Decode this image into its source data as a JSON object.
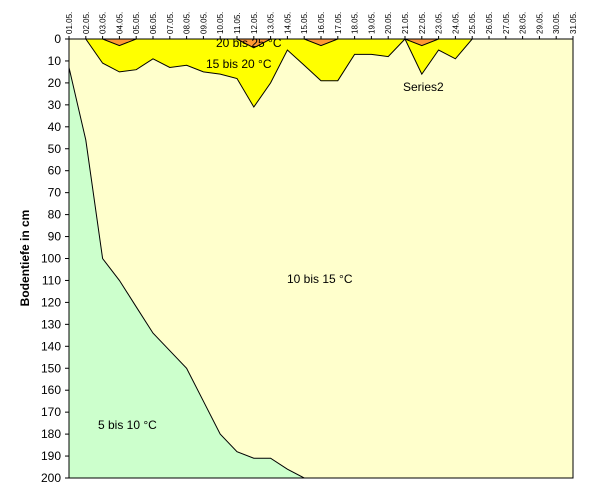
{
  "chart_data": {
    "type": "area",
    "ylabel": "Bodentiefe in cm",
    "xlabel": "",
    "y_inverted": true,
    "ylim": [
      0,
      200
    ],
    "y_ticks": [
      0,
      10,
      20,
      30,
      40,
      50,
      60,
      70,
      80,
      90,
      100,
      110,
      120,
      130,
      140,
      150,
      160,
      170,
      180,
      190,
      200
    ],
    "categories": [
      "01.05.",
      "02.05.",
      "03.05.",
      "04.05.",
      "05.05.",
      "06.05.",
      "07.05.",
      "08.05.",
      "09.05.",
      "10.05.",
      "11.05.",
      "12.05.",
      "13.05.",
      "14.05.",
      "15.05.",
      "16.05.",
      "17.05.",
      "18.05.",
      "19.05.",
      "20.05.",
      "21.05.",
      "22.05.",
      "23.05.",
      "24.05.",
      "25.05.",
      "26.05.",
      "27.05.",
      "28.05.",
      "29.05.",
      "30.05.",
      "31.05."
    ],
    "background_fill": "#ffffcc",
    "plot_background": "#ffffff",
    "series": [
      {
        "name": "5 bis 10 °C",
        "color": "#ccffcc",
        "values": [
          13,
          46,
          100,
          110,
          122,
          134,
          142,
          150,
          165,
          180,
          188,
          191,
          191,
          196,
          200,
          200,
          200,
          200,
          200,
          200,
          200,
          200,
          200,
          200,
          200,
          200,
          200,
          200,
          200,
          200,
          200
        ]
      },
      {
        "name": "15 bis 20 °C",
        "color": "#ffff00",
        "values": [
          0,
          0,
          11,
          15,
          14,
          9,
          13,
          12,
          15,
          16,
          18,
          31,
          20,
          5,
          12,
          19,
          19,
          7,
          7,
          8,
          0,
          16,
          5,
          9,
          0,
          0,
          0,
          0,
          0,
          0,
          0
        ]
      },
      {
        "name": "20 bis 25 °C",
        "color": "#ff9933",
        "values": [
          0,
          0,
          0,
          3,
          0,
          0,
          0,
          0,
          0,
          0,
          0,
          4,
          0,
          0,
          0,
          3,
          0,
          0,
          0,
          0,
          0,
          3,
          0,
          0,
          0,
          0,
          0,
          0,
          0,
          0,
          0
        ]
      }
    ],
    "annotations": [
      "20 bis 25 °C",
      "15 bis 20 °C",
      "10 bis 15 °C",
      "5 bis 10 °C",
      "Series2"
    ]
  }
}
